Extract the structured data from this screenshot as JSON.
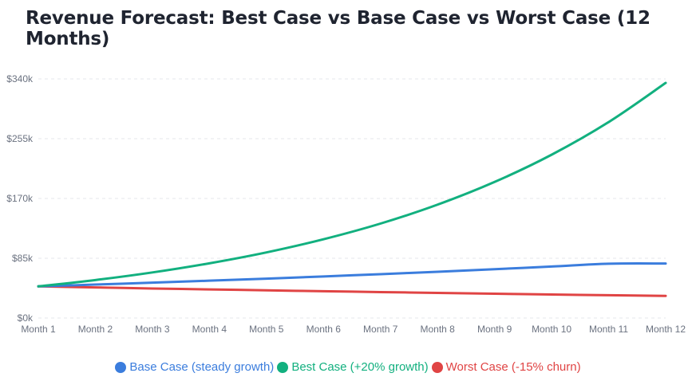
{
  "chart_data": {
    "type": "line",
    "title": "Revenue Forecast: Best Case vs Base Case vs Worst Case (12 Months)",
    "x": [
      "Month 1",
      "Month 2",
      "Month 3",
      "Month 4",
      "Month 5",
      "Month 6",
      "Month 7",
      "Month 8",
      "Month 9",
      "Month 10",
      "Month 11",
      "Month 12"
    ],
    "yticks": [
      0,
      85000,
      170000,
      255000,
      340000
    ],
    "ytick_labels": [
      "$0k",
      "$85k",
      "$170k",
      "$255k",
      "$340k"
    ],
    "ylim": [
      0,
      340000
    ],
    "grid": true,
    "legend_position": "bottom",
    "series": [
      {
        "name": "Base Case (steady growth)",
        "color": "#3b7ddd",
        "values": [
          45000,
          47600,
          50300,
          53100,
          56000,
          59100,
          62400,
          65800,
          69400,
          73200,
          77200,
          77500
        ]
      },
      {
        "name": "Best Case (+20% growth)",
        "color": "#12b07f",
        "values": [
          45000,
          54000,
          64800,
          77800,
          93300,
          112000,
          134300,
          161200,
          193500,
          232200,
          278600,
          334300
        ]
      },
      {
        "name": "Worst Case (-15% churn)",
        "color": "#e04444",
        "values": [
          45000,
          43500,
          42000,
          40700,
          39400,
          38100,
          36900,
          35700,
          34500,
          33400,
          32400,
          31500
        ]
      }
    ]
  }
}
